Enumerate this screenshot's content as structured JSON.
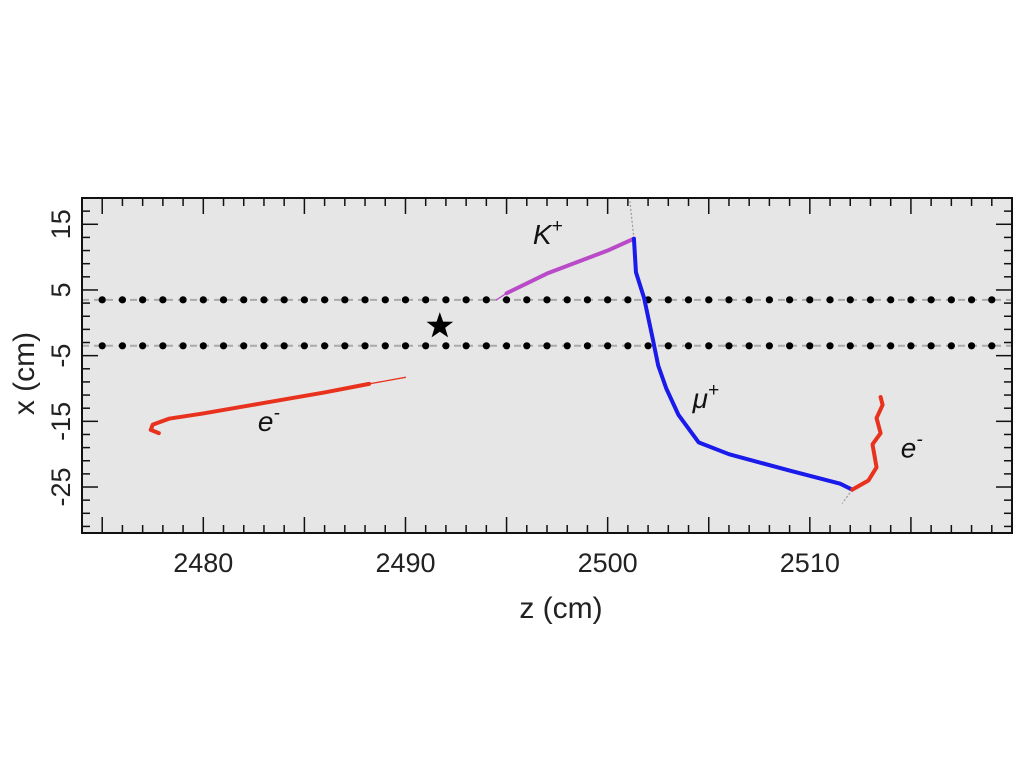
{
  "chart_data": {
    "type": "line",
    "xlabel": "z (cm)",
    "ylabel": "x (cm)",
    "xlim": [
      2474,
      2520
    ],
    "ylim": [
      -32,
      19
    ],
    "x_ticks": [
      2480,
      2490,
      2500,
      2510
    ],
    "y_ticks": [
      -25,
      -15,
      -5,
      5,
      15
    ],
    "x_tick_labels": [
      "2480",
      "2490",
      "2500",
      "2510"
    ],
    "y_tick_labels": [
      "-25",
      "-15",
      "-5",
      "5",
      "15"
    ],
    "grid": false,
    "background_color": "#e6e6e6",
    "wire_planes": [
      {
        "x": 3.5,
        "z_start": 2475,
        "z_end": 2519.5,
        "z_step": 1
      },
      {
        "x": -3.5,
        "z_start": 2475,
        "z_end": 2519.5,
        "z_step": 1
      }
    ],
    "vertex_marker": {
      "z": 2491.7,
      "x": -0.5,
      "symbol": "star"
    },
    "series": [
      {
        "name": "e-",
        "label": "e",
        "label_sup": "-",
        "color": "#e8321e",
        "label_pos": [
          2482.7,
          -16.5
        ],
        "points": [
          [
            2477.8,
            -16.8
          ],
          [
            2477.4,
            -16.3
          ],
          [
            2477.5,
            -15.5
          ],
          [
            2478.3,
            -14.6
          ],
          [
            2480,
            -13.8
          ],
          [
            2483,
            -12.2
          ],
          [
            2486,
            -10.6
          ],
          [
            2488.2,
            -9.3
          ]
        ],
        "thin_points": [
          [
            2488.2,
            -9.3
          ],
          [
            2490,
            -8.3
          ]
        ]
      },
      {
        "name": "K+",
        "label": "K",
        "label_sup": "+",
        "color": "#b94bc8",
        "label_pos": [
          2496.3,
          12
        ],
        "points": [
          [
            2495,
            4.5
          ],
          [
            2497,
            7.5
          ],
          [
            2500,
            11
          ],
          [
            2501.3,
            12.8
          ]
        ],
        "thin_points": [
          [
            2494.5,
            3.5
          ],
          [
            2495,
            4.5
          ]
        ]
      },
      {
        "name": "mu+",
        "label": "μ",
        "label_sup": "+",
        "color": "#1a1aeb",
        "label_pos": [
          2504.2,
          -13
        ],
        "points": [
          [
            2501.3,
            12.8
          ],
          [
            2501.4,
            7.7
          ],
          [
            2501.8,
            3.8
          ],
          [
            2502.2,
            -2
          ],
          [
            2502.5,
            -6.5
          ],
          [
            2502.9,
            -10
          ],
          [
            2503.5,
            -14
          ],
          [
            2504.5,
            -18.2
          ],
          [
            2506,
            -20
          ],
          [
            2509,
            -22.5
          ],
          [
            2511.5,
            -24.5
          ],
          [
            2512.1,
            -25.4
          ]
        ],
        "thin_points": [
          [
            2501.4,
            7.7
          ],
          [
            2501.8,
            3.8
          ]
        ]
      },
      {
        "name": "e-",
        "label": "e",
        "label_sup": "-",
        "color": "#e8321e",
        "label_pos": [
          2514.5,
          -20.5
        ],
        "points": [
          [
            2512.1,
            -25.4
          ],
          [
            2512.9,
            -24
          ],
          [
            2513.3,
            -22
          ],
          [
            2513.1,
            -18.5
          ],
          [
            2513.5,
            -16.8
          ],
          [
            2513.3,
            -14.5
          ],
          [
            2513.6,
            -12.5
          ],
          [
            2513.5,
            -11.3
          ]
        ],
        "thin_points": []
      }
    ],
    "guide_lines": [
      {
        "color": "#999999",
        "points": [
          [
            2501.3,
            12.8
          ],
          [
            2501.1,
            18.5
          ]
        ]
      },
      {
        "color": "#999999",
        "points": [
          [
            2512.1,
            -25.4
          ],
          [
            2511.6,
            -27.5
          ]
        ]
      }
    ]
  }
}
